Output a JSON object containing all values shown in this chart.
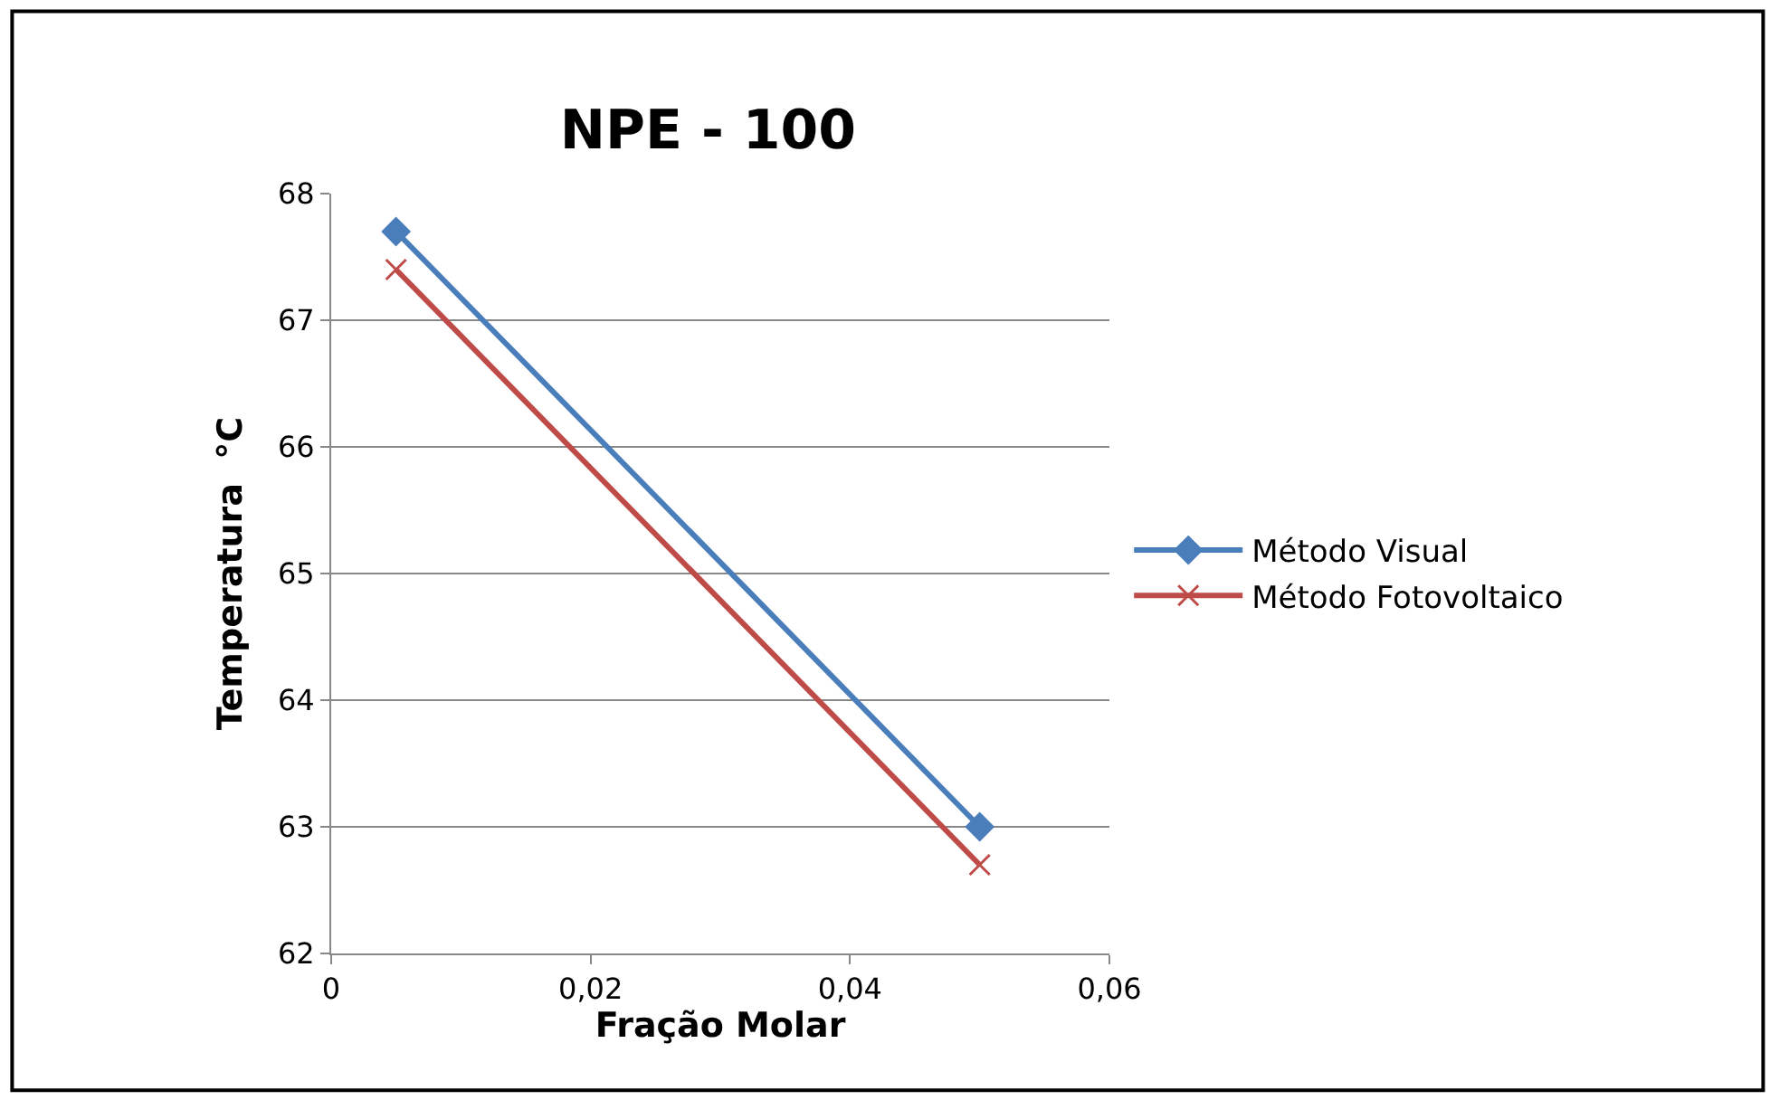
{
  "chart_data": {
    "type": "line",
    "title": "NPE - 100",
    "xlabel": "Fração Molar",
    "ylabel": "Temperatura  °C",
    "x": [
      0.005,
      0.05
    ],
    "xlim": [
      0,
      0.06
    ],
    "xticks": [
      0,
      {
        "value": 0.02,
        "label": "0,02"
      },
      {
        "value": 0.04,
        "label": "0,04"
      },
      {
        "value": 0.06,
        "label": "0,06"
      }
    ],
    "ylim": [
      62,
      68
    ],
    "yticks": [
      62,
      63,
      64,
      65,
      66,
      67,
      68
    ],
    "grid": "y",
    "legend": "right",
    "series": [
      {
        "name": "Método Visual",
        "color": "#4a7ebb",
        "marker": "diamond",
        "values": [
          67.7,
          63.0
        ]
      },
      {
        "name": "Método Fotovoltaico",
        "color": "#be4b48",
        "marker": "cross",
        "values": [
          67.4,
          62.7
        ]
      }
    ]
  }
}
